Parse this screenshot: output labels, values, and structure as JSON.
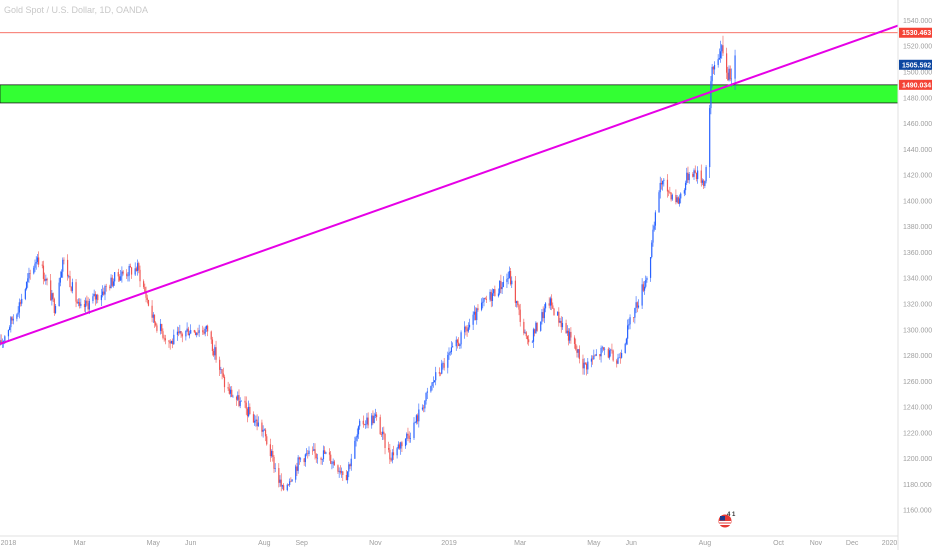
{
  "title": "Gold Spot / U.S. Dollar, 1D, OANDA",
  "colors": {
    "up": "#2962ff",
    "down": "#ef5350",
    "resistance": "#f44336",
    "trendline": "#e600e6",
    "zone": "#33ff33",
    "price": "#0d47a1"
  },
  "chart_data": {
    "type": "candlestick",
    "y_axis": {
      "ylim": [
        1140,
        1545
      ],
      "ticks": [
        1160,
        1180,
        1200,
        1220,
        1240,
        1260,
        1280,
        1300,
        1320,
        1340,
        1360,
        1380,
        1400,
        1420,
        1440,
        1460,
        1480,
        1500,
        1520,
        1540
      ],
      "tick_labels": [
        "1160.000",
        "1180.000",
        "1200.000",
        "1220.000",
        "1240.000",
        "1260.000",
        "1280.000",
        "1300.000",
        "1320.000",
        "1340.000",
        "1360.000",
        "1380.000",
        "1400.000",
        "1420.000",
        "1440.000",
        "1460.000",
        "1480.000",
        "1500.000",
        "1520.000",
        "1540.000"
      ],
      "position": "right"
    },
    "x_axis": {
      "xlim": [
        "2017-12-25",
        "2020-01-08"
      ],
      "ticks": [
        "2018-01-01",
        "2018-03-01",
        "2018-05-01",
        "2018-06-01",
        "2018-08-01",
        "2018-09-01",
        "2018-11-01",
        "2019-01-01",
        "2019-03-01",
        "2019-05-01",
        "2019-06-01",
        "2019-08-01",
        "2019-10-01",
        "2019-11-01",
        "2019-12-01",
        "2020-01-01"
      ],
      "tick_labels": [
        "2018",
        "Mar",
        "May",
        "Jun",
        "Aug",
        "Sep",
        "Nov",
        "2019",
        "Mar",
        "May",
        "Jun",
        "Aug",
        "Oct",
        "Nov",
        "Dec",
        "2020"
      ]
    },
    "price_path": [
      [
        "2017-12-25",
        1288
      ],
      [
        "2018-01-10",
        1320
      ],
      [
        "2018-01-25",
        1358
      ],
      [
        "2018-02-08",
        1318
      ],
      [
        "2018-02-15",
        1355
      ],
      [
        "2018-03-01",
        1315
      ],
      [
        "2018-03-20",
        1330
      ],
      [
        "2018-04-01",
        1342
      ],
      [
        "2018-04-18",
        1348
      ],
      [
        "2018-05-01",
        1308
      ],
      [
        "2018-05-15",
        1290
      ],
      [
        "2018-05-30",
        1300
      ],
      [
        "2018-06-15",
        1300
      ],
      [
        "2018-06-30",
        1255
      ],
      [
        "2018-07-15",
        1240
      ],
      [
        "2018-07-31",
        1222
      ],
      [
        "2018-08-16",
        1175
      ],
      [
        "2018-09-01",
        1202
      ],
      [
        "2018-09-20",
        1204
      ],
      [
        "2018-10-08",
        1188
      ],
      [
        "2018-10-20",
        1228
      ],
      [
        "2018-11-01",
        1232
      ],
      [
        "2018-11-13",
        1202
      ],
      [
        "2018-12-01",
        1222
      ],
      [
        "2018-12-20",
        1262
      ],
      [
        "2019-01-10",
        1292
      ],
      [
        "2019-01-31",
        1322
      ],
      [
        "2019-02-20",
        1342
      ],
      [
        "2019-03-07",
        1288
      ],
      [
        "2019-03-25",
        1322
      ],
      [
        "2019-04-10",
        1296
      ],
      [
        "2019-04-23",
        1272
      ],
      [
        "2019-05-10",
        1285
      ],
      [
        "2019-05-20",
        1275
      ],
      [
        "2019-05-31",
        1305
      ],
      [
        "2019-06-15",
        1345
      ],
      [
        "2019-06-25",
        1415
      ],
      [
        "2019-07-10",
        1400
      ],
      [
        "2019-07-20",
        1425
      ],
      [
        "2019-08-01",
        1415
      ],
      [
        "2019-08-07",
        1500
      ],
      [
        "2019-08-13",
        1518
      ],
      [
        "2019-08-20",
        1500
      ],
      [
        "2019-08-26",
        1505
      ]
    ],
    "horizontal_lines": [
      {
        "value": 1530.463,
        "label": "1530.463",
        "color": "#f44336"
      }
    ],
    "zone": {
      "from": 1476,
      "to": 1490.034
    },
    "markers": [
      {
        "value": 1505.592,
        "label": "1505.592",
        "color": "#0d47a1"
      },
      {
        "value": 1490.034,
        "label": "1490.034",
        "color": "#f44336"
      }
    ],
    "trendline": {
      "from": [
        "2017-12-25",
        1289
      ],
      "to": [
        "2020-01-08",
        1536
      ]
    },
    "event_badge": "4 1",
    "grid": false
  }
}
